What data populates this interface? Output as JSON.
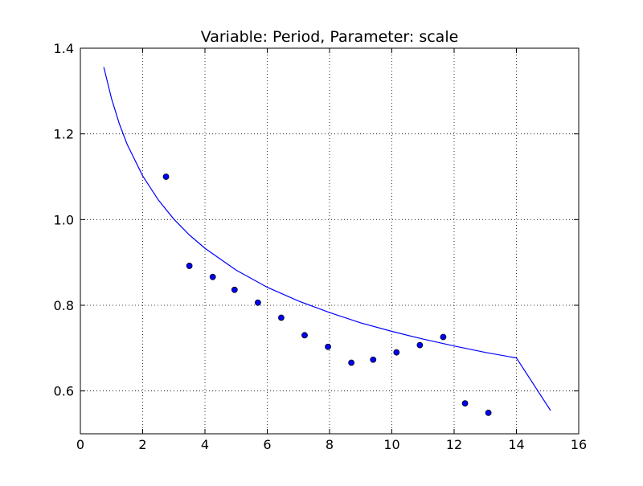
{
  "chart_data": {
    "type": "scatter",
    "title": "Variable: Period,  Parameter: scale",
    "xlabel": "",
    "ylabel": "",
    "xlim": [
      0,
      16
    ],
    "ylim": [
      0.5,
      1.4
    ],
    "x_ticks": [
      0,
      2,
      4,
      6,
      8,
      10,
      12,
      14,
      16
    ],
    "x_tick_labels": [
      "0",
      "2",
      "4",
      "6",
      "8",
      "10",
      "12",
      "14",
      "16"
    ],
    "y_ticks": [
      0.6,
      0.8,
      1.0,
      1.2,
      1.4
    ],
    "y_tick_labels": [
      "0.6",
      "0.8",
      "1.0",
      "1.2",
      "1.4"
    ],
    "grid": true,
    "legend": "none",
    "series": [
      {
        "type": "scatter",
        "color": "#0000ff",
        "x": [
          2.75,
          3.5,
          4.25,
          4.95,
          5.7,
          6.45,
          7.2,
          7.95,
          8.7,
          9.4,
          10.15,
          10.9,
          11.65,
          12.35,
          13.1
        ],
        "y": [
          1.1,
          0.892,
          0.866,
          0.836,
          0.806,
          0.771,
          0.73,
          0.703,
          0.666,
          0.673,
          0.69,
          0.707,
          0.726,
          0.571,
          0.549
        ]
      },
      {
        "type": "line",
        "color": "#0000ff",
        "x": [
          0.75,
          1.0,
          1.25,
          1.5,
          2.0,
          2.5,
          3.0,
          3.5,
          4.0,
          5.0,
          6.0,
          7.0,
          8.0,
          9.0,
          10.0,
          11.0,
          12.0,
          13.0,
          14.0,
          15.1
        ],
        "y": [
          1.356,
          1.282,
          1.224,
          1.176,
          1.102,
          1.046,
          1.001,
          0.964,
          0.933,
          0.882,
          0.842,
          0.81,
          0.783,
          0.759,
          0.739,
          0.721,
          0.705,
          0.69,
          0.677,
          0.554
        ]
      }
    ]
  }
}
